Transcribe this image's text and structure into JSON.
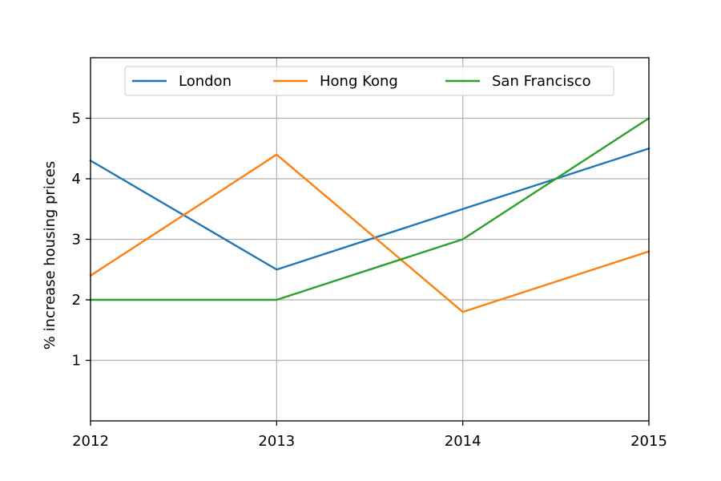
{
  "chart_data": {
    "type": "line",
    "title": "",
    "xlabel": "",
    "ylabel": "% increase housing prices",
    "x": [
      2012,
      2013,
      2014,
      2015
    ],
    "x_tick_labels": [
      "2012",
      "2013",
      "2014",
      "2015"
    ],
    "xlim": [
      2012,
      2015
    ],
    "ylim": [
      0,
      6
    ],
    "y_ticks": [
      1,
      2,
      3,
      4,
      5
    ],
    "y_tick_labels": [
      "1",
      "2",
      "3",
      "4",
      "5"
    ],
    "grid": true,
    "legend_position": "top-center",
    "series": [
      {
        "name": "London",
        "color": "#1f77b4",
        "values": [
          4.3,
          2.5,
          3.5,
          4.5
        ]
      },
      {
        "name": "Hong Kong",
        "color": "#ff7f0e",
        "values": [
          2.4,
          4.4,
          1.8,
          2.8
        ]
      },
      {
        "name": "San Francisco",
        "color": "#2ca02c",
        "values": [
          2.0,
          2.0,
          3.0,
          5.0
        ]
      }
    ]
  }
}
